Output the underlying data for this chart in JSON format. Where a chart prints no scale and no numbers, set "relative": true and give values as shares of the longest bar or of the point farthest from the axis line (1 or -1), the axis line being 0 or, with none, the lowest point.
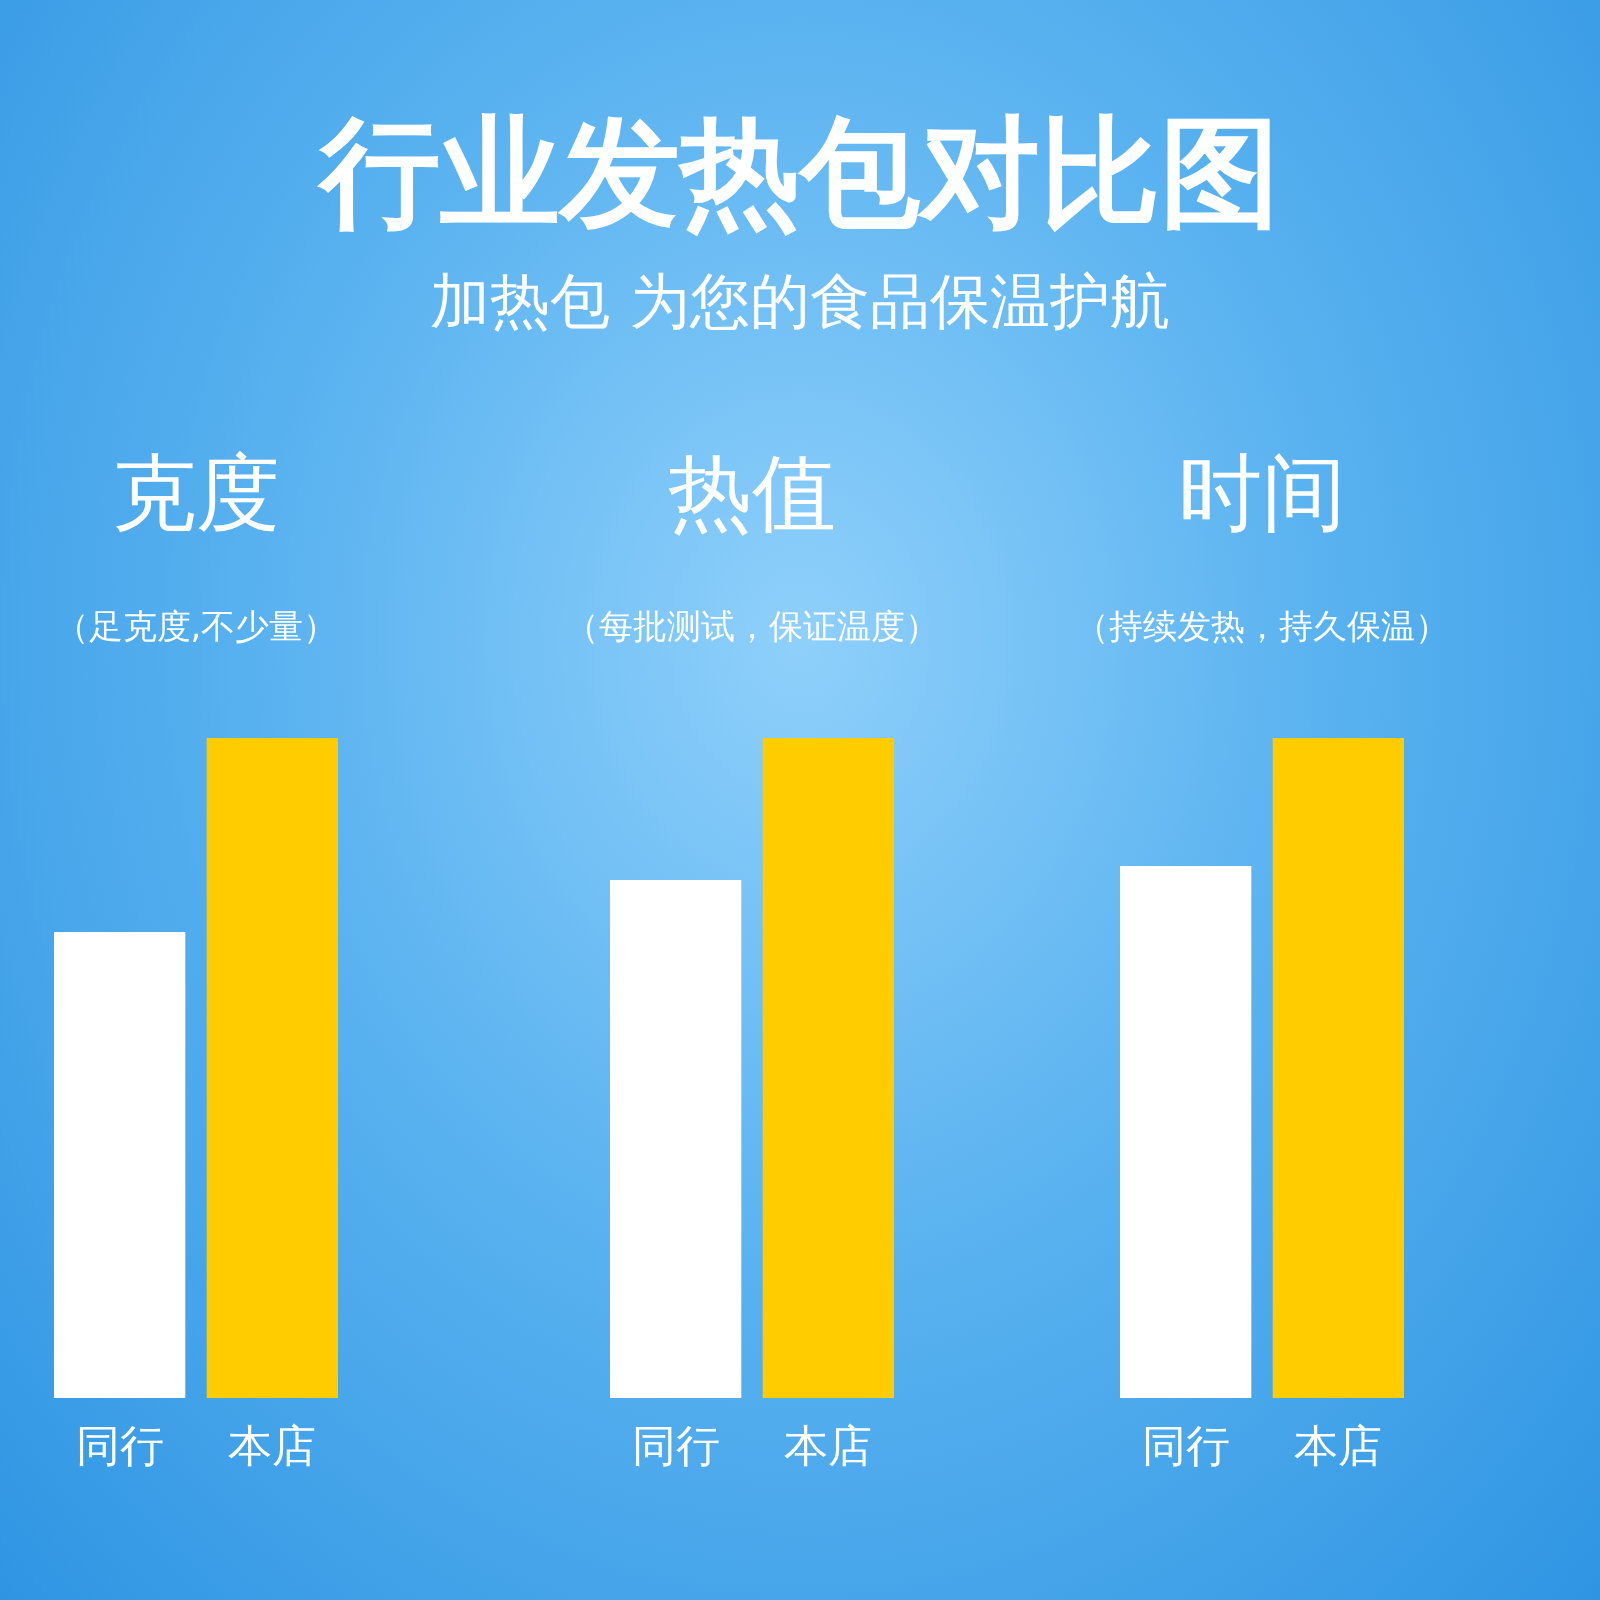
{
  "chart_data": [
    {
      "type": "other",
      "title": "行业发热包对比图",
      "subtitle": "加热包 为您的食品保温护航"
    },
    {
      "type": "bar",
      "title": "克度",
      "subtitle": "（足克度,不少量）",
      "categories": [
        "同行",
        "本店"
      ],
      "values": [
        0.706,
        1
      ],
      "colors": [
        "#ffffff",
        "#ffcc00"
      ],
      "relative": true
    },
    {
      "type": "bar",
      "title": "热值",
      "subtitle": "（每批测试，保证温度）",
      "categories": [
        "同行",
        "本店"
      ],
      "values": [
        0.785,
        1
      ],
      "colors": [
        "#ffffff",
        "#ffcc00"
      ],
      "relative": true
    },
    {
      "type": "bar",
      "title": "时间",
      "subtitle": "（持续发热，持久保温）",
      "categories": [
        "同行",
        "本店"
      ],
      "values": [
        0.806,
        1
      ],
      "colors": [
        "#ffffff",
        "#ffcc00"
      ],
      "relative": true
    }
  ]
}
